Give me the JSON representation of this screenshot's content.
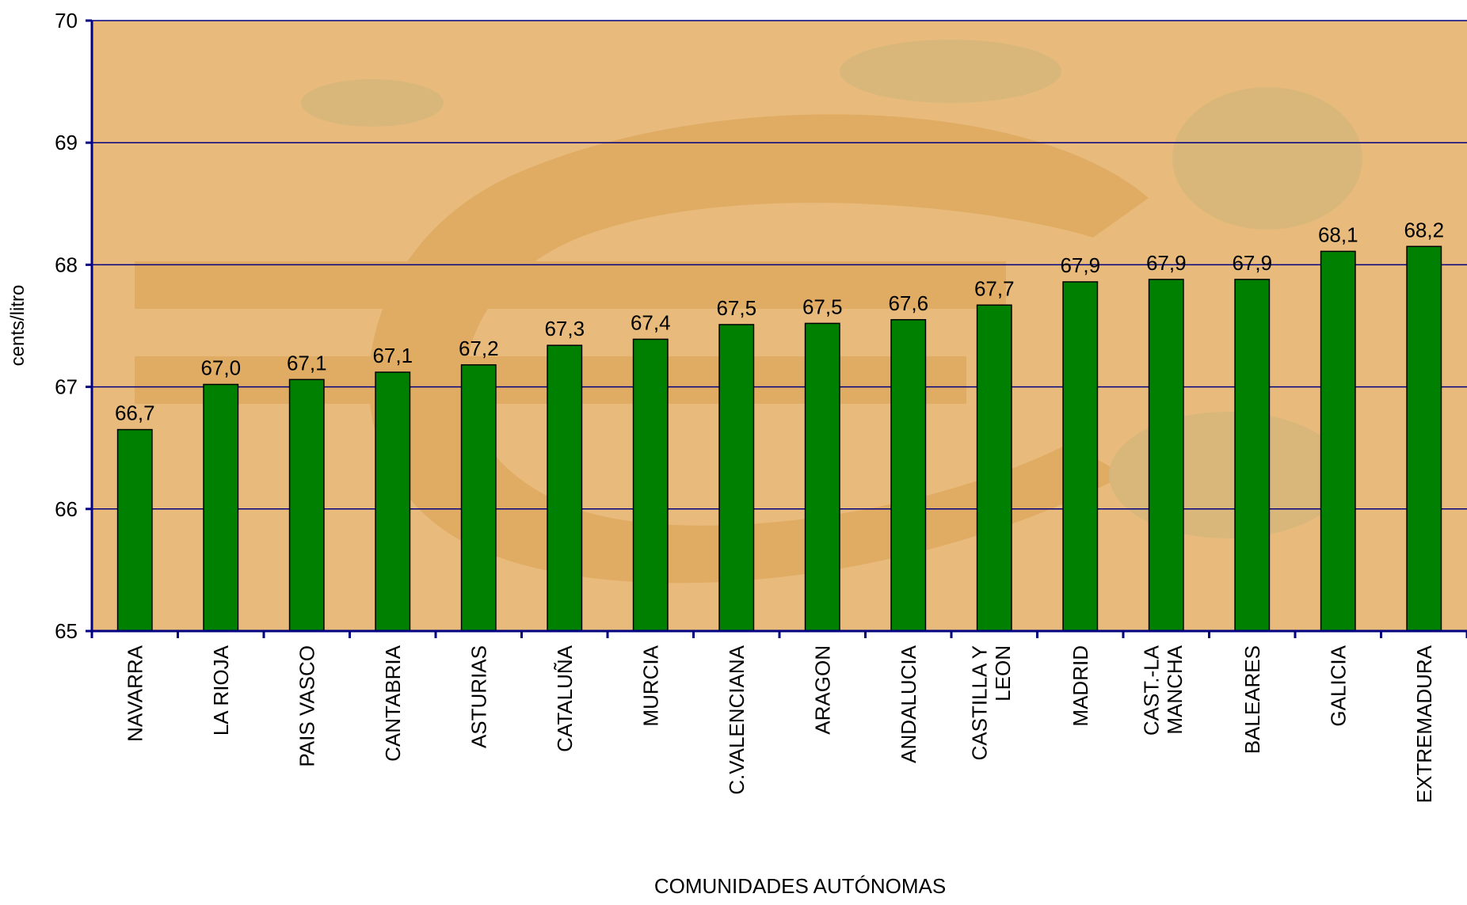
{
  "chart_data": {
    "type": "bar",
    "y_label": "cents/litro",
    "x_label": "COMUNIDADES AUTÓNOMAS",
    "categories": [
      "NAVARRA",
      "LA RIOJA",
      "PAIS VASCO",
      "CANTABRIA",
      "ASTURIAS",
      "CATALUÑA",
      "MURCIA",
      "C.VALENCIANA",
      "ARAGON",
      "ANDALUCIA",
      "CASTILLA Y LEON",
      "MADRID",
      "CAST.-LA MANCHA",
      "BALEARES",
      "GALICIA",
      "EXTREMADURA"
    ],
    "values": [
      66.65,
      67.02,
      67.06,
      67.12,
      67.18,
      67.34,
      67.39,
      67.51,
      67.52,
      67.55,
      67.67,
      67.86,
      67.88,
      67.88,
      68.11,
      68.15
    ],
    "value_labels": [
      "66,7",
      "67,0",
      "67,1",
      "67,1",
      "67,2",
      "67,3",
      "67,4",
      "67,5",
      "67,5",
      "67,6",
      "67,7",
      "67,9",
      "67,9",
      "67,9",
      "68,1",
      "68,2"
    ],
    "color": "#008000",
    "ylim": [
      65,
      70
    ],
    "yticks": [
      65,
      66,
      67,
      68,
      69,
      70
    ],
    "grid": true
  }
}
